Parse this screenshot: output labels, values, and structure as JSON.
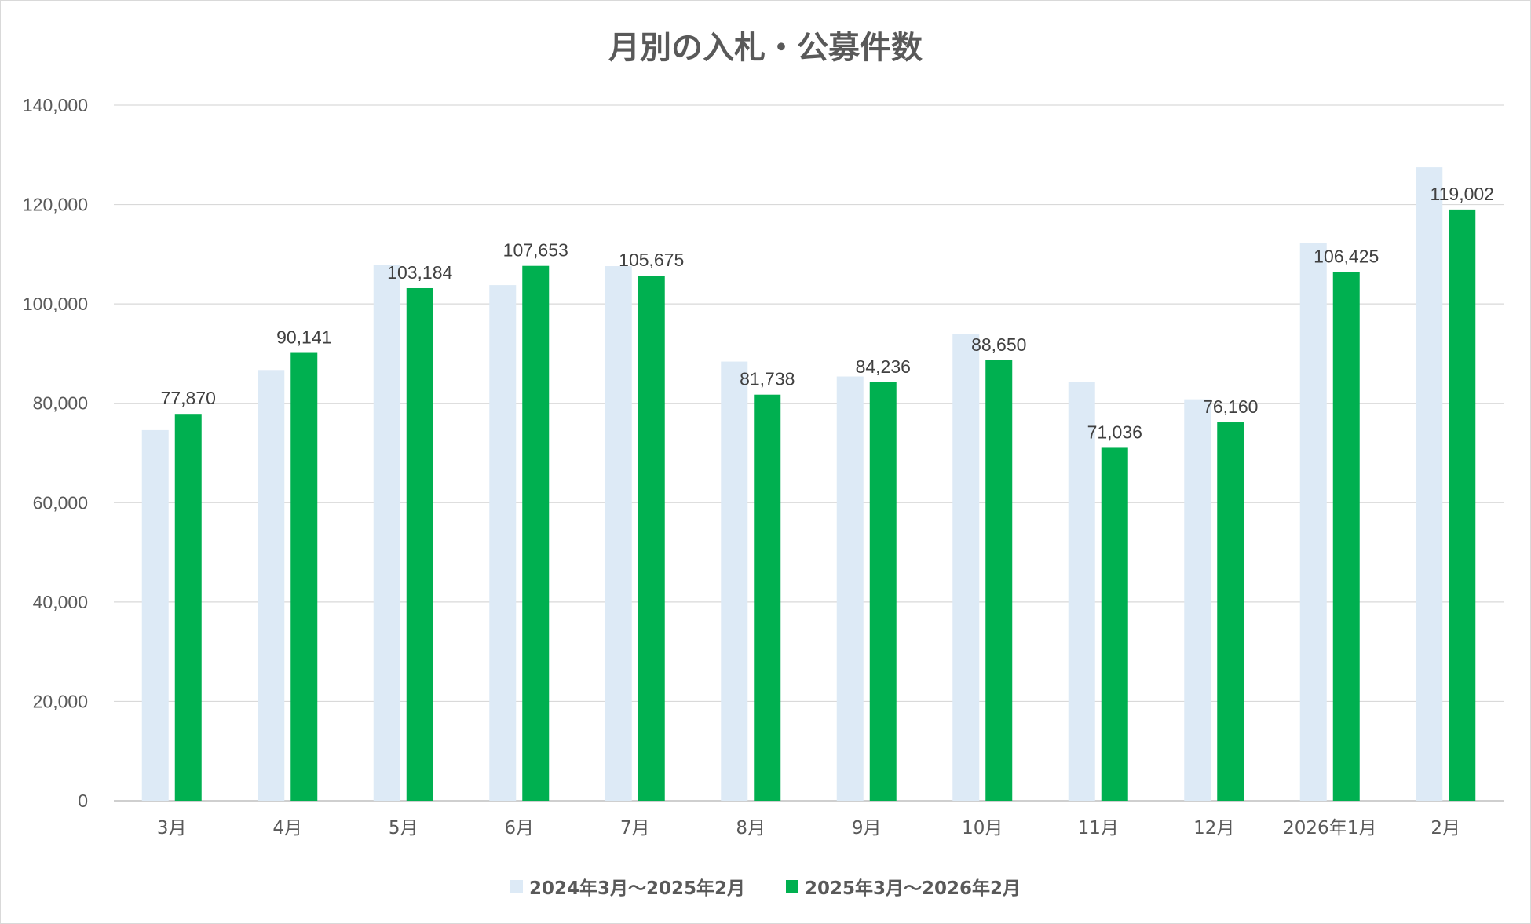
{
  "chart_data": {
    "type": "bar",
    "title": "月別の入札・公募件数",
    "categories": [
      "3月",
      "4月",
      "5月",
      "6月",
      "7月",
      "8月",
      "9月",
      "10月",
      "11月",
      "12月",
      "2026年1月",
      "2月"
    ],
    "series": [
      {
        "name": "2024年3月～2025年2月",
        "color": "#ddeaf6",
        "values": [
          74600,
          86700,
          107800,
          103800,
          107600,
          88400,
          85400,
          93900,
          84300,
          80800,
          112200,
          127500
        ]
      },
      {
        "name": "2025年3月～2026年2月",
        "color": "#00b050",
        "values": [
          77870,
          90141,
          103184,
          107653,
          105675,
          81738,
          84236,
          88650,
          71036,
          76160,
          106425,
          119002
        ],
        "data_labels": [
          "77,870",
          "90,141",
          "103,184",
          "107,653",
          "105,675",
          "81,738",
          "84,236",
          "88,650",
          "71,036",
          "76,160",
          "106,425",
          "119,002"
        ]
      }
    ],
    "y_ticks": [
      "0",
      "20,000",
      "40,000",
      "60,000",
      "80,000",
      "100,000",
      "120,000",
      "140,000"
    ],
    "ylim": [
      0,
      140000
    ],
    "grid": true,
    "legend": "bottom"
  }
}
